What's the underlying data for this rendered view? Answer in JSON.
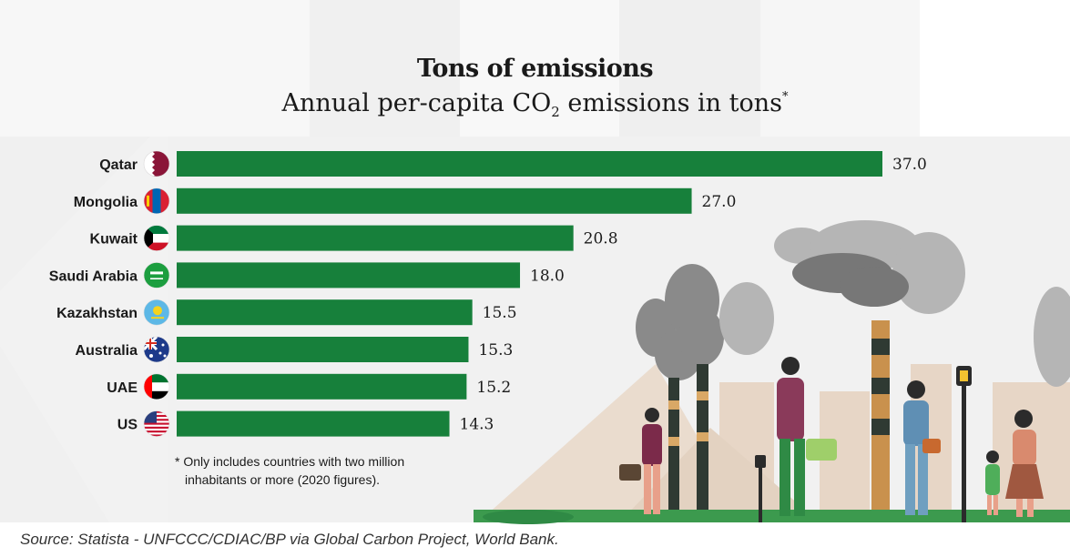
{
  "title": "Tons of emissions",
  "subtitle": {
    "prefix": "Annual per-capita CO",
    "subscript": "2",
    "suffix": " emissions in tons",
    "mark": "*"
  },
  "footnote": {
    "line1": "* Only includes countries with two million",
    "line2": "inhabitants or more (2020 figures)."
  },
  "source": "Source: Statista - UNFCCC/CDIAC/BP via Global Carbon Project, World Bank.",
  "colors": {
    "bar": "#17803b",
    "page": "#ffffff"
  },
  "chart_data": {
    "type": "bar",
    "orientation": "horizontal",
    "categories": [
      "Qatar",
      "Mongolia",
      "Kuwait",
      "Saudi Arabia",
      "Kazakhstan",
      "Australia",
      "UAE",
      "US"
    ],
    "values": [
      37.0,
      27.0,
      20.8,
      18.0,
      15.5,
      15.3,
      15.2,
      14.3
    ],
    "value_labels": [
      "37.0",
      "27.0",
      "20.8",
      "18.0",
      "15.5",
      "15.3",
      "15.2",
      "14.3"
    ],
    "flag_icons": [
      "qatar-flag-icon",
      "mongolia-flag-icon",
      "kuwait-flag-icon",
      "saudi-arabia-flag-icon",
      "kazakhstan-flag-icon",
      "australia-flag-icon",
      "uae-flag-icon",
      "us-flag-icon"
    ],
    "xlim": [
      0,
      37.0
    ],
    "grid": false,
    "legend": "none"
  }
}
